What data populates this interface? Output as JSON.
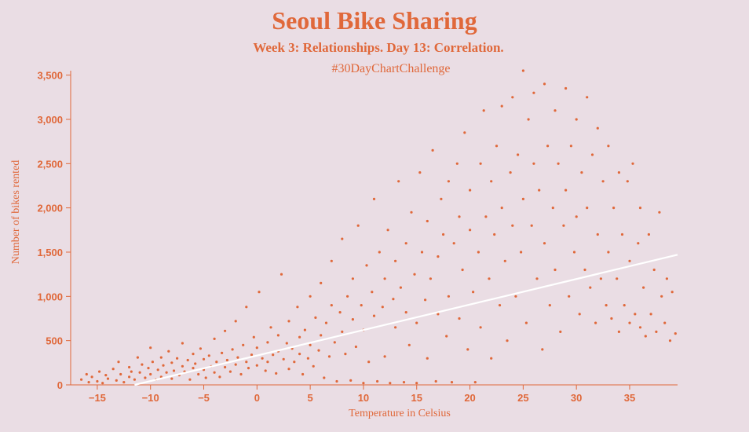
{
  "header": {
    "title": "Seoul Bike Sharing",
    "subtitle": "Week 3: Relationships. Day 13: Correlation.",
    "hashtag": "#30DayChartChallenge"
  },
  "colors": {
    "background": "#eadde4",
    "accent": "#e0683a",
    "trend_line": "#ffffff"
  },
  "chart_data": {
    "type": "scatter",
    "xlabel": "Temperature in Celsius",
    "ylabel": "Number of bikes rented",
    "xlim": [
      -17.5,
      39.5
    ],
    "ylim": [
      0,
      3550
    ],
    "x_ticks": [
      -15,
      -10,
      -5,
      0,
      5,
      10,
      15,
      20,
      25,
      30,
      35
    ],
    "x_tick_labels": [
      "−15",
      "−10",
      "−5",
      "0",
      "5",
      "10",
      "15",
      "20",
      "25",
      "30",
      "35"
    ],
    "y_ticks": [
      0,
      500,
      1000,
      1500,
      2000,
      2500,
      3000,
      3500
    ],
    "y_tick_labels": [
      "0",
      "500",
      "1,000",
      "1,500",
      "2,000",
      "2,500",
      "3,000",
      "3,500"
    ],
    "grid": false,
    "trend_line": {
      "x": [
        -11.5,
        39.5
      ],
      "y": [
        0,
        1470
      ]
    },
    "points": [
      [
        -16.5,
        60
      ],
      [
        -16,
        120
      ],
      [
        -15.8,
        30
      ],
      [
        -15.5,
        90
      ],
      [
        -15,
        40
      ],
      [
        -14.8,
        150
      ],
      [
        -14.5,
        20
      ],
      [
        -14.2,
        110
      ],
      [
        -14,
        70
      ],
      [
        -13.5,
        180
      ],
      [
        -13.2,
        50
      ],
      [
        -13,
        260
      ],
      [
        -12.8,
        120
      ],
      [
        -12.5,
        30
      ],
      [
        -12,
        200
      ],
      [
        -12,
        90
      ],
      [
        -11.8,
        150
      ],
      [
        -11.5,
        60
      ],
      [
        -11.2,
        310
      ],
      [
        -11,
        140
      ],
      [
        -10.8,
        230
      ],
      [
        -10.5,
        80
      ],
      [
        -10.2,
        190
      ],
      [
        -10,
        120
      ],
      [
        -10,
        420
      ],
      [
        -9.8,
        260
      ],
      [
        -9.5,
        60
      ],
      [
        -9.3,
        170
      ],
      [
        -9,
        310
      ],
      [
        -9,
        90
      ],
      [
        -8.8,
        220
      ],
      [
        -8.5,
        140
      ],
      [
        -8.3,
        380
      ],
      [
        -8,
        70
      ],
      [
        -8,
        250
      ],
      [
        -7.8,
        160
      ],
      [
        -7.5,
        300
      ],
      [
        -7.3,
        110
      ],
      [
        -7,
        210
      ],
      [
        -7,
        470
      ],
      [
        -6.8,
        150
      ],
      [
        -6.5,
        280
      ],
      [
        -6.3,
        60
      ],
      [
        -6,
        190
      ],
      [
        -6,
        350
      ],
      [
        -5.8,
        240
      ],
      [
        -5.5,
        120
      ],
      [
        -5.3,
        410
      ],
      [
        -5,
        170
      ],
      [
        -5,
        290
      ],
      [
        -4.8,
        80
      ],
      [
        -4.5,
        330
      ],
      [
        -4.3,
        210
      ],
      [
        -4,
        140
      ],
      [
        -4,
        520
      ],
      [
        -3.8,
        260
      ],
      [
        -3.5,
        90
      ],
      [
        -3.3,
        360
      ],
      [
        -3,
        200
      ],
      [
        -3,
        610
      ],
      [
        -2.8,
        280
      ],
      [
        -2.5,
        150
      ],
      [
        -2.3,
        400
      ],
      [
        -2,
        230
      ],
      [
        -2,
        720
      ],
      [
        -1.8,
        310
      ],
      [
        -1.5,
        120
      ],
      [
        -1.3,
        450
      ],
      [
        -1,
        260
      ],
      [
        -1,
        880
      ],
      [
        -0.8,
        190
      ],
      [
        -0.5,
        340
      ],
      [
        -0.3,
        540
      ],
      [
        0,
        220
      ],
      [
        0,
        420
      ],
      [
        0.2,
        1050
      ],
      [
        0.5,
        300
      ],
      [
        0.8,
        160
      ],
      [
        1,
        480
      ],
      [
        1,
        260
      ],
      [
        1.3,
        650
      ],
      [
        1.5,
        340
      ],
      [
        1.8,
        130
      ],
      [
        2,
        560
      ],
      [
        2,
        380
      ],
      [
        2.3,
        1250
      ],
      [
        2.5,
        290
      ],
      [
        2.8,
        470
      ],
      [
        3,
        180
      ],
      [
        3,
        720
      ],
      [
        3.3,
        410
      ],
      [
        3.5,
        260
      ],
      [
        3.8,
        880
      ],
      [
        4,
        350
      ],
      [
        4,
        540
      ],
      [
        4.3,
        120
      ],
      [
        4.5,
        620
      ],
      [
        4.8,
        300
      ],
      [
        5,
        1000
      ],
      [
        5,
        450
      ],
      [
        5.3,
        210
      ],
      [
        5.5,
        760
      ],
      [
        5.8,
        390
      ],
      [
        6,
        1150
      ],
      [
        6,
        560
      ],
      [
        6.3,
        80
      ],
      [
        6.5,
        700
      ],
      [
        6.8,
        320
      ],
      [
        7,
        900
      ],
      [
        7,
        1400
      ],
      [
        7.3,
        480
      ],
      [
        7.5,
        40
      ],
      [
        7.8,
        820
      ],
      [
        8,
        600
      ],
      [
        8,
        1650
      ],
      [
        8.3,
        350
      ],
      [
        8.5,
        1000
      ],
      [
        8.8,
        50
      ],
      [
        9,
        740
      ],
      [
        9,
        1200
      ],
      [
        9.3,
        430
      ],
      [
        9.5,
        1800
      ],
      [
        9.8,
        900
      ],
      [
        10,
        20
      ],
      [
        10,
        620
      ],
      [
        10.3,
        1350
      ],
      [
        10.5,
        260
      ],
      [
        10.8,
        1050
      ],
      [
        11,
        780
      ],
      [
        11,
        2100
      ],
      [
        11.3,
        40
      ],
      [
        11.5,
        1500
      ],
      [
        11.8,
        880
      ],
      [
        12,
        1200
      ],
      [
        12,
        320
      ],
      [
        12.3,
        1750
      ],
      [
        12.5,
        20
      ],
      [
        12.8,
        970
      ],
      [
        13,
        1400
      ],
      [
        13,
        650
      ],
      [
        13.3,
        2300
      ],
      [
        13.5,
        1100
      ],
      [
        13.8,
        30
      ],
      [
        14,
        820
      ],
      [
        14,
        1600
      ],
      [
        14.3,
        450
      ],
      [
        14.5,
        1950
      ],
      [
        14.8,
        1250
      ],
      [
        15,
        20
      ],
      [
        15,
        700
      ],
      [
        15.3,
        2400
      ],
      [
        15.5,
        1500
      ],
      [
        15.8,
        960
      ],
      [
        16,
        1850
      ],
      [
        16,
        300
      ],
      [
        16.3,
        1200
      ],
      [
        16.5,
        2650
      ],
      [
        16.8,
        40
      ],
      [
        17,
        1450
      ],
      [
        17,
        800
      ],
      [
        17.3,
        2100
      ],
      [
        17.5,
        1700
      ],
      [
        17.8,
        550
      ],
      [
        18,
        2300
      ],
      [
        18,
        1000
      ],
      [
        18.3,
        30
      ],
      [
        18.5,
        1600
      ],
      [
        18.8,
        2500
      ],
      [
        19,
        750
      ],
      [
        19,
        1900
      ],
      [
        19.3,
        1300
      ],
      [
        19.5,
        2850
      ],
      [
        19.8,
        400
      ],
      [
        20,
        1750
      ],
      [
        20,
        2200
      ],
      [
        20.3,
        1050
      ],
      [
        20.5,
        30
      ],
      [
        20.8,
        1500
      ],
      [
        21,
        2500
      ],
      [
        21,
        650
      ],
      [
        21.3,
        3100
      ],
      [
        21.5,
        1900
      ],
      [
        21.8,
        1200
      ],
      [
        22,
        2300
      ],
      [
        22,
        300
      ],
      [
        22.3,
        1700
      ],
      [
        22.5,
        2700
      ],
      [
        22.8,
        900
      ],
      [
        23,
        2000
      ],
      [
        23,
        3150
      ],
      [
        23.3,
        1400
      ],
      [
        23.5,
        500
      ],
      [
        23.8,
        2400
      ],
      [
        24,
        1800
      ],
      [
        24,
        3250
      ],
      [
        24.3,
        1000
      ],
      [
        24.5,
        2600
      ],
      [
        24.8,
        1500
      ],
      [
        25,
        3550
      ],
      [
        25,
        2100
      ],
      [
        25.3,
        700
      ],
      [
        25.5,
        3000
      ],
      [
        25.8,
        1800
      ],
      [
        26,
        2500
      ],
      [
        26,
        3300
      ],
      [
        26.3,
        1200
      ],
      [
        26.5,
        2200
      ],
      [
        26.8,
        400
      ],
      [
        27,
        3400
      ],
      [
        27,
        1600
      ],
      [
        27.3,
        2700
      ],
      [
        27.5,
        900
      ],
      [
        27.8,
        2000
      ],
      [
        28,
        3100
      ],
      [
        28,
        1300
      ],
      [
        28.3,
        2500
      ],
      [
        28.5,
        600
      ],
      [
        28.8,
        1800
      ],
      [
        29,
        3350
      ],
      [
        29,
        2200
      ],
      [
        29.3,
        1000
      ],
      [
        29.5,
        2700
      ],
      [
        29.8,
        1500
      ],
      [
        30,
        1900
      ],
      [
        30,
        3000
      ],
      [
        30.3,
        800
      ],
      [
        30.5,
        2400
      ],
      [
        30.8,
        1300
      ],
      [
        31,
        3250
      ],
      [
        31,
        2000
      ],
      [
        31.3,
        1100
      ],
      [
        31.5,
        2600
      ],
      [
        31.8,
        700
      ],
      [
        32,
        1700
      ],
      [
        32,
        2900
      ],
      [
        32.3,
        1200
      ],
      [
        32.5,
        2300
      ],
      [
        32.8,
        900
      ],
      [
        33,
        1500
      ],
      [
        33,
        2700
      ],
      [
        33.3,
        750
      ],
      [
        33.5,
        2000
      ],
      [
        33.8,
        1200
      ],
      [
        34,
        2400
      ],
      [
        34,
        600
      ],
      [
        34.3,
        1700
      ],
      [
        34.5,
        900
      ],
      [
        34.8,
        2300
      ],
      [
        35,
        700
      ],
      [
        35,
        1400
      ],
      [
        35.3,
        2500
      ],
      [
        35.5,
        800
      ],
      [
        35.8,
        1600
      ],
      [
        36,
        650
      ],
      [
        36,
        2000
      ],
      [
        36.3,
        1100
      ],
      [
        36.5,
        550
      ],
      [
        36.8,
        1700
      ],
      [
        37,
        800
      ],
      [
        37.3,
        1300
      ],
      [
        37.5,
        600
      ],
      [
        37.8,
        1950
      ],
      [
        38,
        1000
      ],
      [
        38.3,
        700
      ],
      [
        38.5,
        1200
      ],
      [
        38.8,
        500
      ],
      [
        39,
        1050
      ],
      [
        39.3,
        580
      ]
    ]
  }
}
